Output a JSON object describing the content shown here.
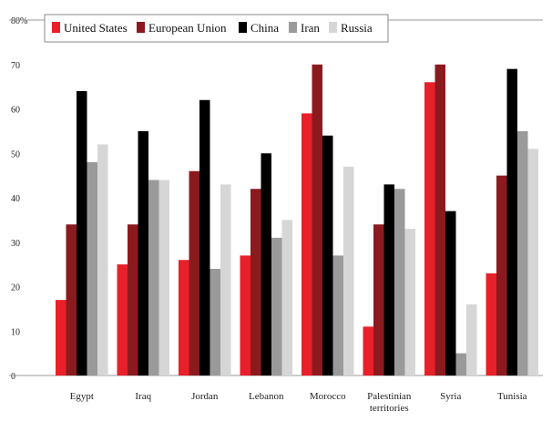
{
  "chart_data": {
    "type": "bar",
    "title": "",
    "xlabel": "",
    "ylabel": "",
    "ylim": [
      0,
      80
    ],
    "yticks": [
      0,
      10,
      20,
      30,
      40,
      50,
      60,
      70,
      80
    ],
    "ytick_labels": [
      "0",
      "10",
      "20",
      "30",
      "40",
      "50",
      "60",
      "70",
      "80%"
    ],
    "grid": false,
    "legend_position": "top",
    "categories": [
      [
        "Egypt"
      ],
      [
        "Iraq"
      ],
      [
        "Jordan"
      ],
      [
        "Lebanon"
      ],
      [
        "Morocco"
      ],
      [
        "Palestinian",
        "territories"
      ],
      [
        "Syria"
      ],
      [
        "Tunisia"
      ]
    ],
    "series": [
      {
        "name": "United States",
        "color": "#e8202a",
        "values": [
          17,
          25,
          26,
          27,
          59,
          11,
          66,
          23
        ]
      },
      {
        "name": "European Union",
        "color": "#8b1a1f",
        "values": [
          34,
          34,
          46,
          42,
          70,
          34,
          70,
          45
        ]
      },
      {
        "name": "China",
        "color": "#000000",
        "values": [
          64,
          55,
          62,
          50,
          54,
          43,
          37,
          69
        ]
      },
      {
        "name": "Iran",
        "color": "#9a9a9a",
        "values": [
          48,
          44,
          24,
          31,
          27,
          42,
          5,
          55
        ]
      },
      {
        "name": "Russia",
        "color": "#d6d6d6",
        "values": [
          52,
          44,
          43,
          35,
          47,
          33,
          16,
          51
        ]
      }
    ]
  }
}
